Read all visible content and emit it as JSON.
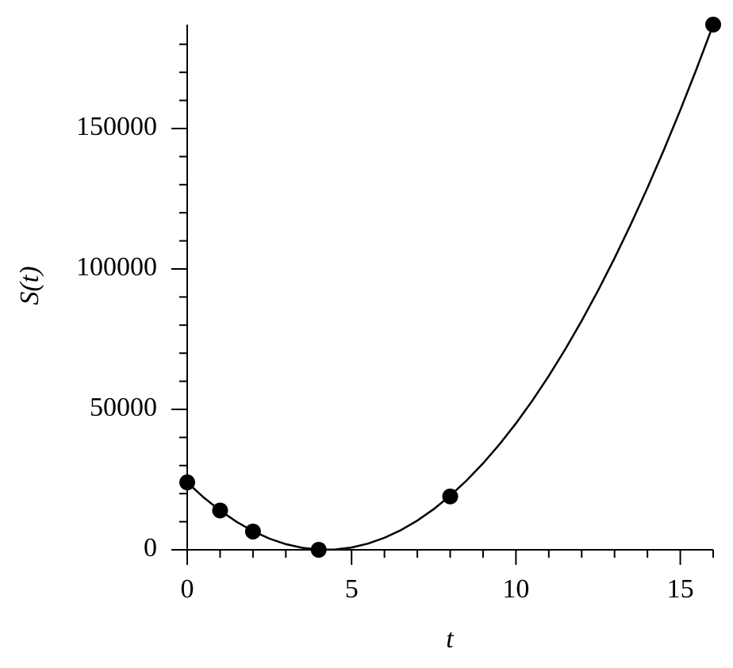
{
  "chart_data": {
    "type": "scatter_fit",
    "xlabel": "t",
    "ylabel": "S(t)",
    "xlim": [
      0,
      16
    ],
    "ylim": [
      0,
      187000
    ],
    "xticks": [
      0,
      5,
      10,
      15
    ],
    "yticks": [
      0,
      50000,
      100000,
      150000
    ],
    "xminor_ticks": [
      1,
      2,
      3,
      4,
      6,
      7,
      8,
      9,
      11,
      12,
      13,
      14,
      16
    ],
    "yminor_ticks": [
      10000,
      20000,
      30000,
      40000,
      60000,
      70000,
      80000,
      90000,
      110000,
      120000,
      130000,
      140000,
      160000,
      170000,
      180000
    ],
    "color": "#000000",
    "points": {
      "x": [
        0,
        1,
        2,
        4,
        8,
        16
      ],
      "values": [
        24000,
        14000,
        6500,
        0,
        19000,
        187000
      ]
    },
    "curve": {
      "x": [
        0,
        0.5,
        1,
        1.5,
        2,
        2.5,
        3,
        3.5,
        4,
        4.5,
        5,
        5.5,
        6,
        6.5,
        7,
        7.5,
        8,
        8.5,
        9,
        9.5,
        10,
        10.5,
        11,
        11.5,
        12,
        12.5,
        13,
        13.5,
        14,
        14.5,
        15,
        15.5,
        16
      ],
      "values": [
        24000,
        18640,
        13970,
        9970,
        6640,
        3985,
        2005,
        698,
        65,
        106,
        820,
        2207,
        4268,
        7002,
        10410,
        14490,
        19250,
        24680,
        30780,
        37550,
        45000,
        53120,
        61920,
        71390,
        81530,
        92350,
        103840,
        116000,
        128840,
        142360,
        156540,
        171390,
        186930
      ]
    }
  }
}
